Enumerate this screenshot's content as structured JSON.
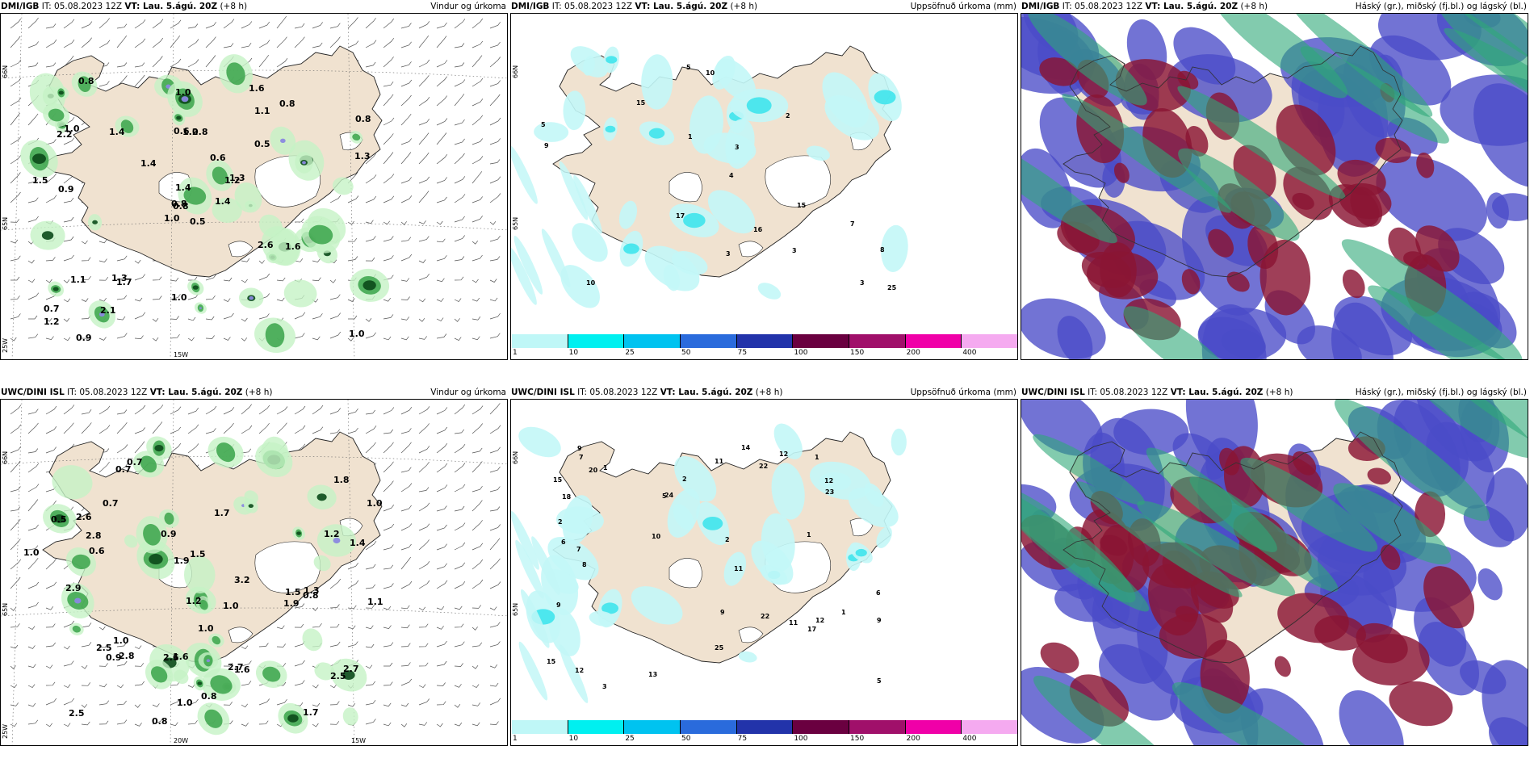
{
  "panels": [
    {
      "model": "DMI/IGB",
      "run": "IT: 05.08.2023 12Z",
      "valid": "VT: Lau. 5.ágú. 20Z",
      "lead": "(+8 h)",
      "product": "Vindur og úrkoma",
      "axis_labels": [
        "66N",
        "65N",
        "25W",
        "15W"
      ],
      "values": [
        "0.5",
        "2.2",
        "0.8",
        "0.7",
        "1.2",
        "1.7",
        "1.6",
        "0.8",
        "1.1",
        "1.4",
        "0.8",
        "1.0",
        "0.9",
        "0.8",
        "1.0",
        "0.5",
        "0.9",
        "0.6",
        "0.6",
        "1.1",
        "1.4",
        "1.2",
        "2.1",
        "1.2",
        "1.3",
        "1.6",
        "1.0",
        "1.0",
        "1.5",
        "2.6",
        "1.3",
        "0.8",
        "1.0",
        "1.4",
        "1.4",
        "0.8",
        "1.3"
      ]
    },
    {
      "model": "DMI/IGB",
      "run": "IT: 05.08.2023 12Z",
      "valid": "VT: Lau. 5.ágú. 20Z",
      "lead": "(+8 h)",
      "product": "Uppsöfnuð úrkoma (mm)",
      "axis_labels": [
        "66N",
        "65N"
      ],
      "values": [
        "15",
        "3",
        "9",
        "7",
        "15",
        "4",
        "10",
        "25",
        "16",
        "17",
        "5",
        "3",
        "8",
        "10",
        "3",
        "3",
        "2",
        "1",
        "5"
      ]
    },
    {
      "model": "DMI/IGB",
      "run": "IT: 05.08.2023 12Z",
      "valid": "VT: Lau. 5.ágú. 20Z",
      "lead": "(+8 h)",
      "product": "Háský (gr.), miðský (fj.bl.) og lágský (bl.)"
    },
    {
      "model": "UWC/DINI ISL",
      "run": "IT: 05.08.2023 12Z",
      "valid": "VT: Lau. 5.ágú. 20Z",
      "lead": "(+8 h)",
      "product": "Vindur og úrkoma",
      "axis_labels": [
        "66N",
        "65N",
        "25W",
        "20W",
        "15W"
      ],
      "values": [
        "2.8",
        "0.5",
        "1.9",
        "0.7",
        "2.8",
        "1.7",
        "1.0",
        "1.0",
        "2.5",
        "1.9",
        "0.7",
        "1.5",
        "1.7",
        "1.3",
        "1.0",
        "0.8",
        "0.9",
        "1.2",
        "2.5",
        "1.6",
        "1.1",
        "0.9",
        "0.7",
        "0.8",
        "1.4",
        "2.5",
        "1.0",
        "1.6",
        "1.5",
        "2.9",
        "3.2",
        "2.7",
        "2.6",
        "1.0",
        "0.8",
        "2.6",
        "2.7",
        "1.0",
        "0.6",
        "1.8",
        "1.2"
      ]
    },
    {
      "model": "UWC/DINI ISL",
      "run": "IT: 05.08.2023 12Z",
      "valid": "VT: Lau. 5.ágú. 20Z",
      "lead": "(+8 h)",
      "product": "Uppsöfnuð úrkoma (mm)",
      "axis_labels": [
        "66N",
        "65N"
      ],
      "values": [
        "3",
        "1",
        "2",
        "9",
        "2",
        "10",
        "9",
        "6",
        "7",
        "12",
        "11",
        "8",
        "11",
        "12",
        "12",
        "22",
        "22",
        "9",
        "5",
        "14",
        "17",
        "18",
        "5",
        "6",
        "7",
        "12",
        "15",
        "23",
        "24",
        "13",
        "25",
        "15",
        "20",
        "9",
        "11",
        "1",
        "1",
        "2",
        "1"
      ]
    },
    {
      "model": "UWC/DINI ISL",
      "run": "IT: 05.08.2023 12Z",
      "valid": "VT: Lau. 5.ágú. 20Z",
      "lead": "(+8 h)",
      "product": "Háský (gr.), miðský (fj.bl.) og lágský (bl.)"
    }
  ],
  "colorbar": {
    "ticks": [
      "1",
      "10",
      "25",
      "50",
      "75",
      "100",
      "150",
      "200",
      "400"
    ],
    "colors": [
      "#bff7f7",
      "#00f0f0",
      "#00c3f0",
      "#2a6bdc",
      "#2233aa",
      "#6a0040",
      "#a0106a",
      "#f000a8",
      "#f5aaf0"
    ]
  },
  "palette": {
    "land": "#f0e2d0",
    "precip_light": "#c6f3c6",
    "precip_mid": "#3aa34a",
    "precip_heavy": "#0b4a1a",
    "precip_extreme": "#8a88e0",
    "accum_light": "#c3f7f7",
    "accum_mid": "#3fe4ec",
    "cloud_high": "#2ea878",
    "cloud_mid": "#8a1533",
    "cloud_low": "#4a4cc8"
  }
}
